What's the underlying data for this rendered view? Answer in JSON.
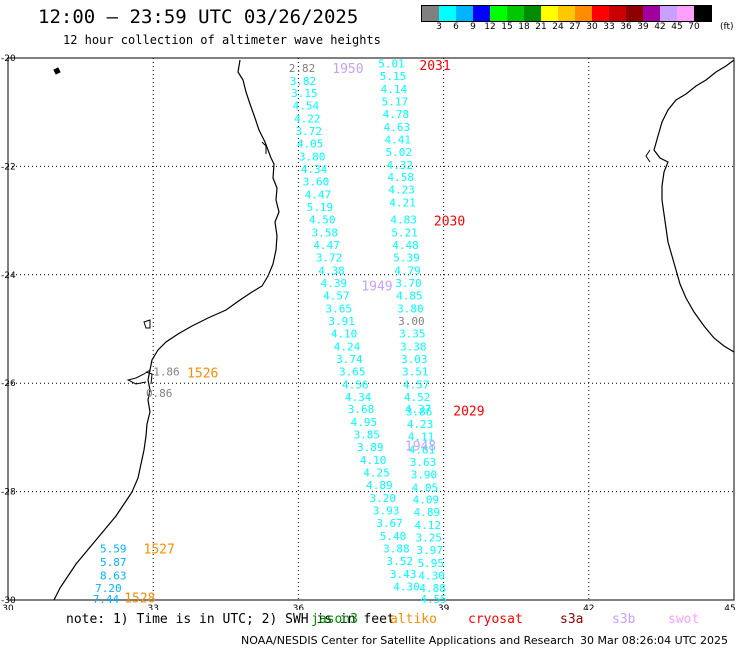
{
  "header": {
    "title": "12:00 – 23:59 UTC 03/26/2025",
    "subtitle": "12 hour collection of altimeter wave heights"
  },
  "color_scale": {
    "labels": [
      "3",
      "6",
      "9",
      "12",
      "15",
      "18",
      "21",
      "24",
      "27",
      "30",
      "33",
      "36",
      "39",
      "42",
      "45",
      "70"
    ],
    "unit": "(ft)",
    "colors": [
      "#808080",
      "#00ffff",
      "#00b4ff",
      "#0000ff",
      "#00ff00",
      "#00c800",
      "#008c00",
      "#ffff00",
      "#ffc800",
      "#ff8c00",
      "#ff0000",
      "#c80000",
      "#8c0000",
      "#a000a0",
      "#c8a0ff",
      "#ffa0ff",
      "#000000"
    ]
  },
  "map": {
    "lon_labels": [
      "30",
      "33",
      "36",
      "39",
      "42",
      "45"
    ],
    "lat_labels": [
      "-20",
      "-22",
      "-24",
      "-26",
      "-28",
      "-30"
    ],
    "lon_range": [
      30,
      45
    ],
    "lat_range": [
      -30,
      -20
    ]
  },
  "track_labels": [
    {
      "text": "1950",
      "color": "#c8a0ff",
      "lon": 36.7,
      "lat": -20.18
    },
    {
      "text": "2031",
      "color": "#ff0000",
      "lon": 38.5,
      "lat": -20.13
    },
    {
      "text": "2030",
      "color": "#ff0000",
      "lon": 38.8,
      "lat": -23.0
    },
    {
      "text": "1949",
      "color": "#c8a0ff",
      "lon": 37.3,
      "lat": -24.2
    },
    {
      "text": "1526",
      "color": "#ff8c00",
      "lon": 33.7,
      "lat": -25.8
    },
    {
      "text": "2029",
      "color": "#ff0000",
      "lon": 39.2,
      "lat": -26.5
    },
    {
      "text": "1948",
      "color": "#c8a0ff",
      "lon": 38.2,
      "lat": -27.15
    },
    {
      "text": "1527",
      "color": "#ff8c00",
      "lon": 32.8,
      "lat": -29.05
    },
    {
      "text": "1528",
      "color": "#ff8c00",
      "lon": 32.4,
      "lat": -29.95
    }
  ],
  "swh_values": [
    {
      "text": "2.82",
      "color": "#808080",
      "lon": 35.8,
      "lat": -20.18
    },
    {
      "text": "3.82",
      "color": "#00ffff",
      "lon": 35.82,
      "lat": -20.42
    },
    {
      "text": "3.15",
      "color": "#00ffff",
      "lon": 35.85,
      "lat": -20.65
    },
    {
      "text": "4.54",
      "color": "#00ffff",
      "lon": 35.88,
      "lat": -20.88
    },
    {
      "text": "4.22",
      "color": "#00ffff",
      "lon": 35.91,
      "lat": -21.12
    },
    {
      "text": "3.72",
      "color": "#00ffff",
      "lon": 35.94,
      "lat": -21.35
    },
    {
      "text": "4.05",
      "color": "#00ffff",
      "lon": 35.97,
      "lat": -21.58
    },
    {
      "text": "3.80",
      "color": "#00ffff",
      "lon": 36.01,
      "lat": -21.82
    },
    {
      "text": "4.34",
      "color": "#00ffff",
      "lon": 36.05,
      "lat": -22.05
    },
    {
      "text": "3.60",
      "color": "#00ffff",
      "lon": 36.09,
      "lat": -22.28
    },
    {
      "text": "4.47",
      "color": "#00ffff",
      "lon": 36.13,
      "lat": -22.52
    },
    {
      "text": "5.19",
      "color": "#00ffff",
      "lon": 36.17,
      "lat": -22.75
    },
    {
      "text": "4.50",
      "color": "#00ffff",
      "lon": 36.22,
      "lat": -22.98
    },
    {
      "text": "3.58",
      "color": "#00ffff",
      "lon": 36.27,
      "lat": -23.22
    },
    {
      "text": "4.47",
      "color": "#00ffff",
      "lon": 36.31,
      "lat": -23.45
    },
    {
      "text": "3.72",
      "color": "#00ffff",
      "lon": 36.36,
      "lat": -23.68
    },
    {
      "text": "4.38",
      "color": "#00ffff",
      "lon": 36.41,
      "lat": -23.92
    },
    {
      "text": "4.39",
      "color": "#00ffff",
      "lon": 36.46,
      "lat": -24.15
    },
    {
      "text": "4.57",
      "color": "#00ffff",
      "lon": 36.51,
      "lat": -24.38
    },
    {
      "text": "3.65",
      "color": "#00ffff",
      "lon": 36.56,
      "lat": -24.62
    },
    {
      "text": "3.91",
      "color": "#00ffff",
      "lon": 36.62,
      "lat": -24.85
    },
    {
      "text": "4.10",
      "color": "#00ffff",
      "lon": 36.67,
      "lat": -25.08
    },
    {
      "text": "4.24",
      "color": "#00ffff",
      "lon": 36.73,
      "lat": -25.32
    },
    {
      "text": "3.74",
      "color": "#00ffff",
      "lon": 36.78,
      "lat": -25.55
    },
    {
      "text": "3.65",
      "color": "#00ffff",
      "lon": 36.84,
      "lat": -25.78
    },
    {
      "text": "4.56",
      "color": "#00ffff",
      "lon": 36.9,
      "lat": -26.02
    },
    {
      "text": "4.34",
      "color": "#00ffff",
      "lon": 36.96,
      "lat": -26.25
    },
    {
      "text": "3.68",
      "color": "#00ffff",
      "lon": 37.02,
      "lat": -26.48
    },
    {
      "text": "4.95",
      "color": "#00ffff",
      "lon": 37.08,
      "lat": -26.72
    },
    {
      "text": "3.85",
      "color": "#00ffff",
      "lon": 37.14,
      "lat": -26.95
    },
    {
      "text": "3.89",
      "color": "#00ffff",
      "lon": 37.21,
      "lat": -27.18
    },
    {
      "text": "4.10",
      "color": "#00ffff",
      "lon": 37.27,
      "lat": -27.42
    },
    {
      "text": "4.25",
      "color": "#00ffff",
      "lon": 37.34,
      "lat": -27.65
    },
    {
      "text": "4.89",
      "color": "#00ffff",
      "lon": 37.4,
      "lat": -27.88
    },
    {
      "text": "3.20",
      "color": "#00ffff",
      "lon": 37.47,
      "lat": -28.12
    },
    {
      "text": "3.93",
      "color": "#00ffff",
      "lon": 37.54,
      "lat": -28.35
    },
    {
      "text": "3.67",
      "color": "#00ffff",
      "lon": 37.61,
      "lat": -28.58
    },
    {
      "text": "5.40",
      "color": "#00ffff",
      "lon": 37.68,
      "lat": -28.82
    },
    {
      "text": "3.88",
      "color": "#00ffff",
      "lon": 37.75,
      "lat": -29.05
    },
    {
      "text": "3.52",
      "color": "#00ffff",
      "lon": 37.82,
      "lat": -29.28
    },
    {
      "text": "3.43",
      "color": "#00ffff",
      "lon": 37.89,
      "lat": -29.52
    },
    {
      "text": "4.30",
      "color": "#00ffff",
      "lon": 37.96,
      "lat": -29.75
    },
    {
      "text": "5.01",
      "color": "#00ffff",
      "lon": 37.65,
      "lat": -20.1
    },
    {
      "text": "5.15",
      "color": "#00ffff",
      "lon": 37.68,
      "lat": -20.33
    },
    {
      "text": "4.14",
      "color": "#00ffff",
      "lon": 37.7,
      "lat": -20.57
    },
    {
      "text": "5.17",
      "color": "#00ffff",
      "lon": 37.72,
      "lat": -20.8
    },
    {
      "text": "4.78",
      "color": "#00ffff",
      "lon": 37.74,
      "lat": -21.03
    },
    {
      "text": "4.63",
      "color": "#00ffff",
      "lon": 37.76,
      "lat": -21.27
    },
    {
      "text": "4.41",
      "color": "#00ffff",
      "lon": 37.78,
      "lat": -21.5
    },
    {
      "text": "5.02",
      "color": "#00ffff",
      "lon": 37.8,
      "lat": -21.73
    },
    {
      "text": "4.32",
      "color": "#00ffff",
      "lon": 37.82,
      "lat": -21.97
    },
    {
      "text": "4.58",
      "color": "#00ffff",
      "lon": 37.84,
      "lat": -22.2
    },
    {
      "text": "4.23",
      "color": "#00ffff",
      "lon": 37.86,
      "lat": -22.43
    },
    {
      "text": "4.21",
      "color": "#00ffff",
      "lon": 37.88,
      "lat": -22.67
    },
    {
      "text": "4.83",
      "color": "#00ffff",
      "lon": 37.9,
      "lat": -22.98
    },
    {
      "text": "5.21",
      "color": "#00ffff",
      "lon": 37.92,
      "lat": -23.22
    },
    {
      "text": "4.48",
      "color": "#00ffff",
      "lon": 37.94,
      "lat": -23.45
    },
    {
      "text": "5.39",
      "color": "#00ffff",
      "lon": 37.96,
      "lat": -23.68
    },
    {
      "text": "4.79",
      "color": "#00ffff",
      "lon": 37.98,
      "lat": -23.92
    },
    {
      "text": "3.70",
      "color": "#00ffff",
      "lon": 38.0,
      "lat": -24.15
    },
    {
      "text": "4.85",
      "color": "#00ffff",
      "lon": 38.02,
      "lat": -24.38
    },
    {
      "text": "3.80",
      "color": "#00ffff",
      "lon": 38.04,
      "lat": -24.62
    },
    {
      "text": "3.00",
      "color": "#808080",
      "lon": 38.06,
      "lat": -24.85
    },
    {
      "text": "3.35",
      "color": "#00ffff",
      "lon": 38.08,
      "lat": -25.08
    },
    {
      "text": "3.38",
      "color": "#00ffff",
      "lon": 38.1,
      "lat": -25.32
    },
    {
      "text": "3.03",
      "color": "#00ffff",
      "lon": 38.12,
      "lat": -25.55
    },
    {
      "text": "3.51",
      "color": "#00ffff",
      "lon": 38.14,
      "lat": -25.78
    },
    {
      "text": "4.57",
      "color": "#00ffff",
      "lon": 38.16,
      "lat": -26.02
    },
    {
      "text": "4.52",
      "color": "#00ffff",
      "lon": 38.18,
      "lat": -26.25
    },
    {
      "text": "4.37",
      "color": "#00ffff",
      "lon": 38.2,
      "lat": -26.48
    },
    {
      "text": "3.86",
      "color": "#00ffff",
      "lon": 38.22,
      "lat": -26.52
    },
    {
      "text": "4.23",
      "color": "#00ffff",
      "lon": 38.24,
      "lat": -26.75
    },
    {
      "text": "4.11",
      "color": "#00ffff",
      "lon": 38.26,
      "lat": -26.98
    },
    {
      "text": "4.61",
      "color": "#00ffff",
      "lon": 38.28,
      "lat": -27.22
    },
    {
      "text": "3.63",
      "color": "#00ffff",
      "lon": 38.3,
      "lat": -27.45
    },
    {
      "text": "3.90",
      "color": "#00ffff",
      "lon": 38.32,
      "lat": -27.68
    },
    {
      "text": "4.05",
      "color": "#00ffff",
      "lon": 38.34,
      "lat": -27.92
    },
    {
      "text": "4.09",
      "color": "#00ffff",
      "lon": 38.36,
      "lat": -28.15
    },
    {
      "text": "4.89",
      "color": "#00ffff",
      "lon": 38.38,
      "lat": -28.38
    },
    {
      "text": "4.12",
      "color": "#00ffff",
      "lon": 38.4,
      "lat": -28.62
    },
    {
      "text": "3.25",
      "color": "#00ffff",
      "lon": 38.42,
      "lat": -28.85
    },
    {
      "text": "3.97",
      "color": "#00ffff",
      "lon": 38.44,
      "lat": -29.08
    },
    {
      "text": "5.95",
      "color": "#00ffff",
      "lon": 38.46,
      "lat": -29.32
    },
    {
      "text": "4.30",
      "color": "#00ffff",
      "lon": 38.48,
      "lat": -29.55
    },
    {
      "text": "4.88",
      "color": "#00ffff",
      "lon": 38.5,
      "lat": -29.78
    },
    {
      "text": "4.55",
      "color": "#00ffff",
      "lon": 38.52,
      "lat": -29.98
    },
    {
      "text": "1.86",
      "color": "#808080",
      "lon": 33.0,
      "lat": -25.78
    },
    {
      "text": "0.86",
      "color": "#808080",
      "lon": 32.85,
      "lat": -26.18
    },
    {
      "text": "5.59",
      "color": "#00b4ff",
      "lon": 31.9,
      "lat": -29.05
    },
    {
      "text": "5.87",
      "color": "#00b4ff",
      "lon": 31.9,
      "lat": -29.3
    },
    {
      "text": "8.63",
      "color": "#00b4ff",
      "lon": 31.9,
      "lat": -29.55
    },
    {
      "text": "7.20",
      "color": "#00b4ff",
      "lon": 31.8,
      "lat": -29.78
    },
    {
      "text": "7.44",
      "color": "#00b4ff",
      "lon": 31.75,
      "lat": -29.98
    }
  ],
  "footer": {
    "note": "note: 1) Time is in UTC; 2) SWH is in feet",
    "satellites": [
      {
        "name": "jason3",
        "color": "#008c00"
      },
      {
        "name": "altiko",
        "color": "#ff8c00"
      },
      {
        "name": "cryosat",
        "color": "#ff0000"
      },
      {
        "name": "s3a",
        "color": "#8c0000"
      },
      {
        "name": "s3b",
        "color": "#c8a0ff"
      },
      {
        "name": "swot",
        "color": "#ffa0ff"
      }
    ],
    "credit": "NOAA/NESDIS Center for Satellite Applications and Research",
    "timestamp": "30 Mar 08:26:04 UTC 2025"
  }
}
